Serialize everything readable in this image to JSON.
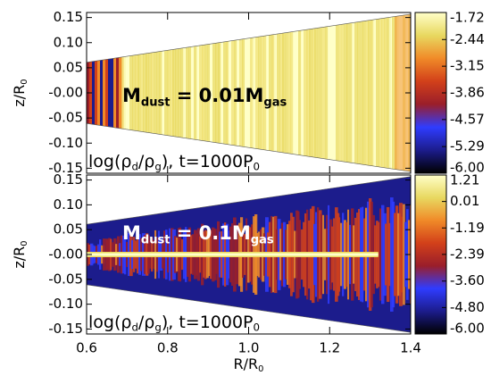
{
  "chart_data": [
    {
      "type": "heatmap",
      "ylabel_parts": [
        "z/R",
        "0"
      ],
      "annotation_parts": [
        "M",
        "dust",
        " = 0.01M",
        "gas"
      ],
      "label_parts": [
        "log(ρ",
        "d",
        "/ρ",
        "g",
        "), t=1000P",
        "0"
      ],
      "ylim": [
        -0.16,
        0.16
      ],
      "yticks": [
        0.15,
        {
          "value": 0.1,
          "label": "0.10"
        },
        0.05,
        {
          "value": 0,
          "label": "-0.00"
        },
        -0.05,
        {
          "value": -0.1,
          "label": "-0.10"
        },
        -0.15
      ],
      "zlim": [
        -6.0,
        -1.72
      ],
      "zticks": [
        -1.72,
        -2.44,
        -3.15,
        -3.86,
        -4.57,
        -5.29,
        {
          "value": -6,
          "label": "-6.00"
        }
      ],
      "colormap": [
        "#000000",
        "#1c1c8c",
        "#2f3cff",
        "#9a1e2a",
        "#d2401a",
        "#f08a28",
        "#e8d860",
        "#ffffc8"
      ]
    },
    {
      "type": "heatmap",
      "ylabel_parts": [
        "z/R",
        "0"
      ],
      "annotation_parts": [
        "M",
        "dust",
        " = 0.1M",
        "gas"
      ],
      "label_parts": [
        "log(ρ",
        "d",
        "/ρ",
        "g",
        "), t=1000P",
        "0"
      ],
      "xlabel_parts": [
        "R/R",
        "0"
      ],
      "xlim": [
        0.6,
        1.4
      ],
      "xticks": [
        0.6,
        0.8,
        {
          "value": 1,
          "label": "1.0"
        },
        1.2,
        1.4
      ],
      "ylim": [
        -0.16,
        0.16
      ],
      "yticks": [
        0.15,
        {
          "value": 0.1,
          "label": "0.10"
        },
        0.05,
        {
          "value": 0,
          "label": "-0.00"
        },
        -0.05,
        {
          "value": -0.1,
          "label": "-0.10"
        },
        -0.15
      ],
      "zlim": [
        -6.0,
        1.21
      ],
      "zticks": [
        1.21,
        0.01,
        -1.19,
        -2.39,
        {
          "value": -3.6,
          "label": "-3.60"
        },
        {
          "value": -4.8,
          "label": "-4.80"
        },
        {
          "value": -6,
          "label": "-6.00"
        }
      ],
      "colormap": [
        "#000000",
        "#1c1c8c",
        "#2f3cff",
        "#9a1e2a",
        "#d2401a",
        "#f08a28",
        "#e8d860",
        "#ffffc8"
      ]
    }
  ]
}
